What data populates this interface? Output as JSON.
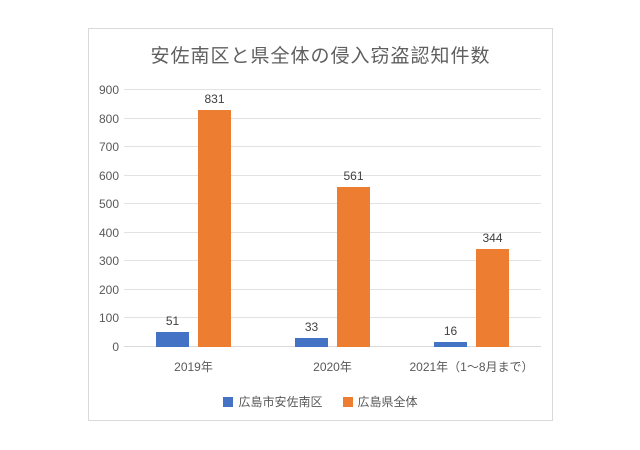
{
  "chart_data": {
    "type": "bar",
    "title": "安佐南区と県全体の侵入窃盗認知件数",
    "categories": [
      "2019年",
      "2020年",
      "2021年（1～8月まで）"
    ],
    "series": [
      {
        "name": "広島市安佐南区",
        "color": "#4472C4",
        "values": [
          51,
          33,
          16
        ]
      },
      {
        "name": "広島県全体",
        "color": "#ED7D31",
        "values": [
          831,
          561,
          344
        ]
      }
    ],
    "yticks": [
      0,
      100,
      200,
      300,
      400,
      500,
      600,
      700,
      800,
      900
    ],
    "ylim": [
      0,
      900
    ],
    "grid": true,
    "data_labels": true,
    "legend_position": "bottom"
  },
  "colors": {
    "background": "#FFFFFF",
    "chart_border": "#D9D9D9",
    "gridline": "#E2E2E2",
    "axis_line": "#D9D9D9",
    "title_text": "#5F5F5F",
    "axis_text": "#595959",
    "data_label_text": "#404040"
  }
}
